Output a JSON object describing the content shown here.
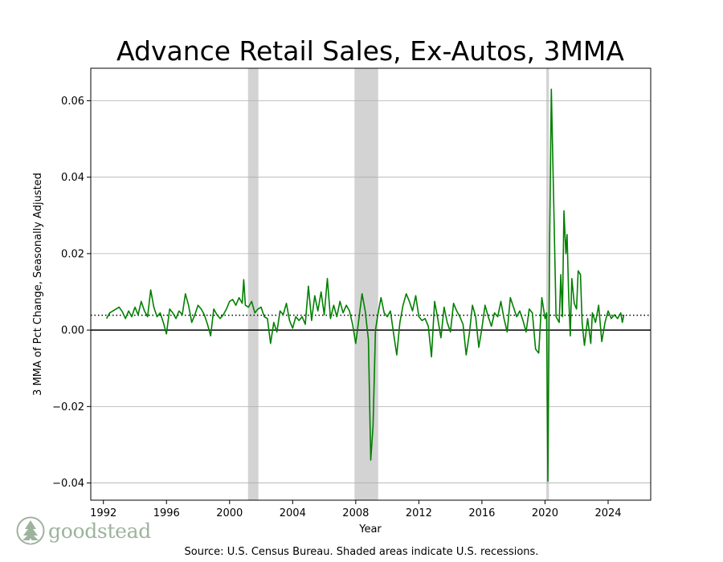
{
  "chart_data": {
    "type": "line",
    "title": "Advance Retail Sales, Ex-Autos, 3MMA",
    "xlabel": "Year",
    "ylabel": "3 MMA of Pct Change, Seasonally Adjusted",
    "xlim": [
      1991.2,
      2026.7
    ],
    "ylim": [
      -0.0445,
      0.0685
    ],
    "grid": "horizontal",
    "x_ticks": [
      1992,
      1996,
      2000,
      2004,
      2008,
      2012,
      2016,
      2020,
      2024
    ],
    "x_tick_labels": [
      "1992",
      "1996",
      "2000",
      "2004",
      "2008",
      "2012",
      "2016",
      "2020",
      "2024"
    ],
    "y_ticks": [
      -0.04,
      -0.02,
      0.0,
      0.02,
      0.04,
      0.06
    ],
    "y_tick_labels": [
      "−0.04",
      "−0.02",
      "0.00",
      "0.02",
      "0.04",
      "0.06"
    ],
    "recessions": [
      [
        2001.17,
        2001.83
      ],
      [
        2007.92,
        2009.42
      ],
      [
        2020.08,
        2020.25
      ]
    ],
    "mean_line": 0.0039,
    "zero_line": 0.0,
    "series": [
      {
        "color": "#008000",
        "points": [
          [
            1992.2,
            0.003
          ],
          [
            1992.4,
            0.0045
          ],
          [
            1992.6,
            0.005
          ],
          [
            1992.8,
            0.0055
          ],
          [
            1993.0,
            0.006
          ],
          [
            1993.2,
            0.0048
          ],
          [
            1993.4,
            0.003
          ],
          [
            1993.6,
            0.005
          ],
          [
            1993.8,
            0.0035
          ],
          [
            1994.0,
            0.006
          ],
          [
            1994.2,
            0.004
          ],
          [
            1994.4,
            0.0075
          ],
          [
            1994.6,
            0.005
          ],
          [
            1994.8,
            0.0035
          ],
          [
            1995.0,
            0.0105
          ],
          [
            1995.2,
            0.006
          ],
          [
            1995.4,
            0.0035
          ],
          [
            1995.6,
            0.0045
          ],
          [
            1995.8,
            0.002
          ],
          [
            1996.0,
            -0.001
          ],
          [
            1996.2,
            0.0055
          ],
          [
            1996.4,
            0.0045
          ],
          [
            1996.6,
            0.003
          ],
          [
            1996.8,
            0.005
          ],
          [
            1997.0,
            0.004
          ],
          [
            1997.2,
            0.0095
          ],
          [
            1997.4,
            0.0065
          ],
          [
            1997.6,
            0.002
          ],
          [
            1997.8,
            0.004
          ],
          [
            1998.0,
            0.0065
          ],
          [
            1998.2,
            0.0055
          ],
          [
            1998.4,
            0.004
          ],
          [
            1998.6,
            0.0015
          ],
          [
            1998.8,
            -0.0015
          ],
          [
            1999.0,
            0.0055
          ],
          [
            1999.2,
            0.004
          ],
          [
            1999.4,
            0.003
          ],
          [
            1999.6,
            0.004
          ],
          [
            1999.8,
            0.0055
          ],
          [
            2000.0,
            0.0075
          ],
          [
            2000.2,
            0.008
          ],
          [
            2000.4,
            0.0065
          ],
          [
            2000.6,
            0.0085
          ],
          [
            2000.8,
            0.007
          ],
          [
            2000.9,
            0.0132
          ],
          [
            2001.0,
            0.0065
          ],
          [
            2001.2,
            0.006
          ],
          [
            2001.4,
            0.0075
          ],
          [
            2001.6,
            0.0045
          ],
          [
            2001.8,
            0.0055
          ],
          [
            2002.0,
            0.006
          ],
          [
            2002.2,
            0.0035
          ],
          [
            2002.4,
            0.003
          ],
          [
            2002.6,
            -0.0035
          ],
          [
            2002.8,
            0.002
          ],
          [
            2003.0,
            -0.0005
          ],
          [
            2003.2,
            0.005
          ],
          [
            2003.4,
            0.004
          ],
          [
            2003.6,
            0.007
          ],
          [
            2003.8,
            0.0025
          ],
          [
            2004.0,
            0.0005
          ],
          [
            2004.2,
            0.0035
          ],
          [
            2004.4,
            0.0025
          ],
          [
            2004.6,
            0.0035
          ],
          [
            2004.8,
            0.0015
          ],
          [
            2005.0,
            0.0115
          ],
          [
            2005.2,
            0.0025
          ],
          [
            2005.4,
            0.009
          ],
          [
            2005.6,
            0.005
          ],
          [
            2005.8,
            0.01
          ],
          [
            2006.0,
            0.004
          ],
          [
            2006.2,
            0.0135
          ],
          [
            2006.4,
            0.003
          ],
          [
            2006.6,
            0.0065
          ],
          [
            2006.8,
            0.0035
          ],
          [
            2007.0,
            0.0075
          ],
          [
            2007.2,
            0.0045
          ],
          [
            2007.4,
            0.0065
          ],
          [
            2007.6,
            0.005
          ],
          [
            2007.8,
            0.0015
          ],
          [
            2008.0,
            -0.0035
          ],
          [
            2008.2,
            0.003
          ],
          [
            2008.4,
            0.0095
          ],
          [
            2008.6,
            0.005
          ],
          [
            2008.8,
            -0.0025
          ],
          [
            2008.95,
            -0.034
          ],
          [
            2009.1,
            -0.025
          ],
          [
            2009.25,
            0.0
          ],
          [
            2009.4,
            0.004
          ],
          [
            2009.6,
            0.0085
          ],
          [
            2009.8,
            0.0045
          ],
          [
            2010.0,
            0.0035
          ],
          [
            2010.2,
            0.005
          ],
          [
            2010.4,
            -0.001
          ],
          [
            2010.6,
            -0.0065
          ],
          [
            2010.8,
            0.002
          ],
          [
            2011.0,
            0.0065
          ],
          [
            2011.2,
            0.0095
          ],
          [
            2011.4,
            0.0075
          ],
          [
            2011.6,
            0.005
          ],
          [
            2011.8,
            0.009
          ],
          [
            2012.0,
            0.0035
          ],
          [
            2012.2,
            0.0025
          ],
          [
            2012.4,
            0.003
          ],
          [
            2012.6,
            0.001
          ],
          [
            2012.8,
            -0.007
          ],
          [
            2013.0,
            0.0075
          ],
          [
            2013.2,
            0.003
          ],
          [
            2013.4,
            -0.002
          ],
          [
            2013.6,
            0.006
          ],
          [
            2013.8,
            0.002
          ],
          [
            2014.0,
            -0.0005
          ],
          [
            2014.2,
            0.007
          ],
          [
            2014.4,
            0.005
          ],
          [
            2014.6,
            0.0035
          ],
          [
            2014.8,
            0.0015
          ],
          [
            2015.0,
            -0.0065
          ],
          [
            2015.2,
            -0.001
          ],
          [
            2015.4,
            0.0065
          ],
          [
            2015.6,
            0.0035
          ],
          [
            2015.8,
            -0.0045
          ],
          [
            2016.0,
            0.0005
          ],
          [
            2016.2,
            0.0065
          ],
          [
            2016.4,
            0.0035
          ],
          [
            2016.6,
            0.001
          ],
          [
            2016.8,
            0.0045
          ],
          [
            2017.0,
            0.0035
          ],
          [
            2017.2,
            0.0075
          ],
          [
            2017.4,
            0.003
          ],
          [
            2017.6,
            -0.0005
          ],
          [
            2017.8,
            0.0085
          ],
          [
            2018.0,
            0.006
          ],
          [
            2018.2,
            0.0035
          ],
          [
            2018.4,
            0.005
          ],
          [
            2018.6,
            0.0025
          ],
          [
            2018.8,
            -0.0005
          ],
          [
            2019.0,
            0.0055
          ],
          [
            2019.2,
            0.0045
          ],
          [
            2019.4,
            -0.005
          ],
          [
            2019.6,
            -0.006
          ],
          [
            2019.8,
            0.0085
          ],
          [
            2020.0,
            0.003
          ],
          [
            2020.1,
            0.0045
          ],
          [
            2020.18,
            -0.0395
          ],
          [
            2020.3,
            0.025
          ],
          [
            2020.4,
            0.063
          ],
          [
            2020.55,
            0.033
          ],
          [
            2020.7,
            0.0035
          ],
          [
            2020.9,
            0.002
          ],
          [
            2021.0,
            0.0145
          ],
          [
            2021.1,
            0.0035
          ],
          [
            2021.2,
            0.0312
          ],
          [
            2021.32,
            0.02
          ],
          [
            2021.4,
            0.025
          ],
          [
            2021.5,
            0.009
          ],
          [
            2021.6,
            -0.0015
          ],
          [
            2021.7,
            0.0135
          ],
          [
            2021.85,
            0.007
          ],
          [
            2022.0,
            0.0055
          ],
          [
            2022.1,
            0.0155
          ],
          [
            2022.25,
            0.0145
          ],
          [
            2022.35,
            0.002
          ],
          [
            2022.5,
            -0.004
          ],
          [
            2022.7,
            0.003
          ],
          [
            2022.9,
            -0.0035
          ],
          [
            2023.0,
            0.0045
          ],
          [
            2023.2,
            0.002
          ],
          [
            2023.4,
            0.0065
          ],
          [
            2023.6,
            -0.003
          ],
          [
            2023.8,
            0.002
          ],
          [
            2024.0,
            0.005
          ],
          [
            2024.2,
            0.003
          ],
          [
            2024.4,
            0.004
          ],
          [
            2024.6,
            0.003
          ],
          [
            2024.8,
            0.0045
          ],
          [
            2024.9,
            0.002
          ],
          [
            2025.0,
            0.004
          ]
        ]
      }
    ]
  },
  "logo": {
    "text": "goodstead",
    "icon": "tree-icon"
  },
  "source": "Source:  U.S. Census Bureau. Shaded areas indicate U.S. recessions."
}
